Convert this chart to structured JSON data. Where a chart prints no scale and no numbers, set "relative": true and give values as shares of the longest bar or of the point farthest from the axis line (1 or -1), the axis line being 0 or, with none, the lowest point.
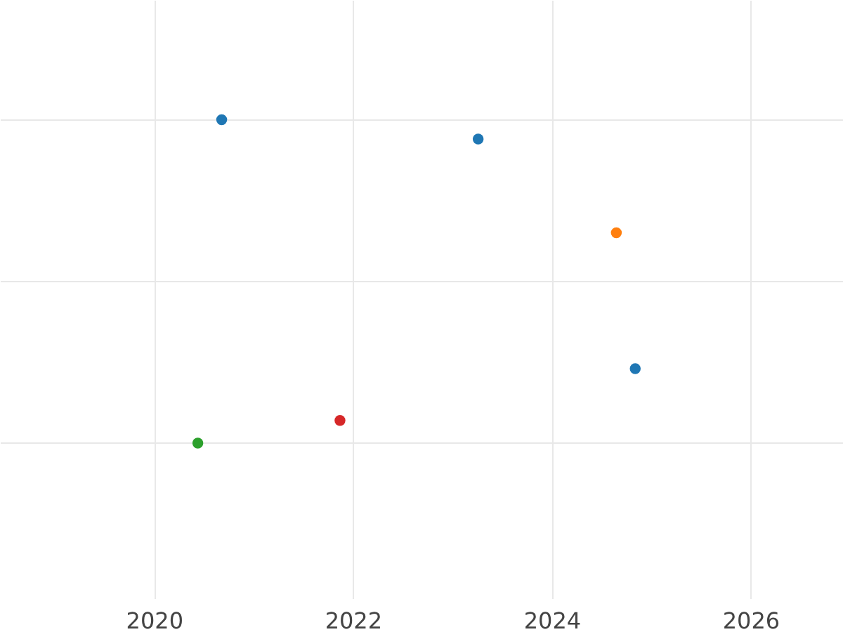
{
  "chart_data": {
    "type": "scatter",
    "relative": true,
    "grid": true,
    "marker": "circle",
    "x": [
      2020.68,
      2023.26,
      2024.65,
      2024.84,
      2021.87,
      2020.44
    ],
    "values": [
      1,
      0.94,
      0.65,
      0.23,
      0.07,
      0
    ],
    "colors": [
      "#1f77b4",
      "#1f77b4",
      "#ff7f0e",
      "#1f77b4",
      "#d62728",
      "#2ca02c"
    ],
    "xlim": [
      2018.45,
      2026.93
    ],
    "xticks": [
      2020,
      2022,
      2024,
      2026
    ]
  }
}
